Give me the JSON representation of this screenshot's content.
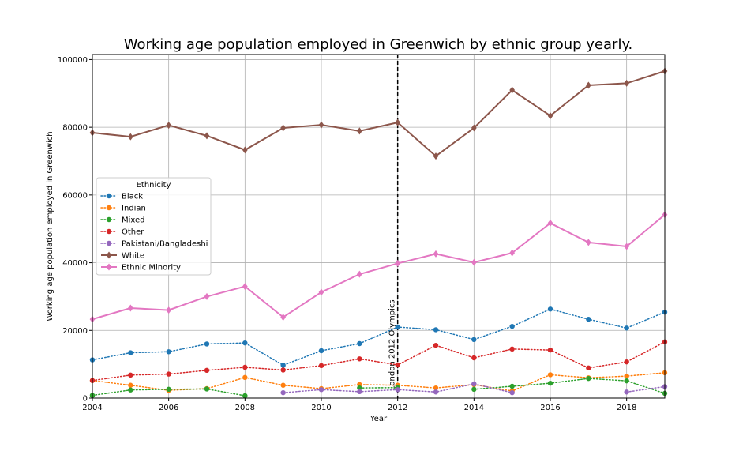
{
  "chart_data": {
    "type": "line",
    "title": "Working age population employed in Greenwich by ethnic group yearly.",
    "xlabel": "Year",
    "ylabel": "Working age population employed in Greenwich",
    "xlim": [
      2004,
      2019
    ],
    "ylim": [
      0,
      101500
    ],
    "xticks": [
      2004,
      2006,
      2008,
      2010,
      2012,
      2014,
      2016,
      2018
    ],
    "yticks": [
      0,
      20000,
      40000,
      60000,
      80000,
      100000
    ],
    "grid": true,
    "legend": {
      "title": "Ethnicity",
      "position": "center-left"
    },
    "annotation": {
      "x": 2012,
      "text": "London 2012 Olympics"
    },
    "x": [
      2004,
      2005,
      2006,
      2007,
      2008,
      2009,
      2010,
      2011,
      2012,
      2013,
      2014,
      2015,
      2016,
      2017,
      2018,
      2019
    ],
    "series": [
      {
        "name": "Black",
        "color": "#1f77b4",
        "style": "dotted",
        "marker": "circle",
        "values": [
          11300,
          13400,
          13700,
          16000,
          16300,
          9700,
          14000,
          16100,
          21000,
          20200,
          17300,
          21200,
          26300,
          23300,
          20700,
          25400
        ]
      },
      {
        "name": "Indian",
        "color": "#ff7f0e",
        "style": "dotted",
        "marker": "circle",
        "values": [
          5200,
          3800,
          2300,
          2800,
          6100,
          3800,
          2800,
          4000,
          3800,
          3000,
          4000,
          2100,
          6900,
          6000,
          6500,
          7500
        ]
      },
      {
        "name": "Mixed",
        "color": "#2ca02c",
        "style": "dotted",
        "marker": "circle",
        "values": [
          800,
          2400,
          2600,
          2700,
          700,
          null,
          null,
          3000,
          3100,
          null,
          2600,
          3500,
          4400,
          5800,
          5100,
          1400
        ]
      },
      {
        "name": "Other",
        "color": "#d62728",
        "style": "dotted",
        "marker": "circle",
        "values": [
          5200,
          6800,
          7100,
          8200,
          9100,
          8300,
          9600,
          11600,
          9800,
          15600,
          11900,
          14500,
          14200,
          8900,
          10700,
          16600
        ]
      },
      {
        "name": "Pakistani/Bangladeshi",
        "color": "#9467bd",
        "style": "dotted",
        "marker": "circle",
        "values": [
          null,
          null,
          null,
          null,
          null,
          1600,
          2500,
          1900,
          2500,
          1800,
          4200,
          1600,
          null,
          null,
          1800,
          3400
        ]
      },
      {
        "name": "White",
        "color": "#8c564b",
        "style": "solid",
        "marker": "diamond",
        "values": [
          78400,
          77200,
          80600,
          77500,
          73300,
          79800,
          80700,
          78900,
          81400,
          71500,
          79800,
          91000,
          83400,
          92400,
          93000,
          96600
        ]
      },
      {
        "name": "Ethnic Minority",
        "color": "#e377c2",
        "style": "solid",
        "marker": "diamond",
        "values": [
          23300,
          26600,
          26000,
          30000,
          33000,
          23900,
          31300,
          36600,
          39800,
          42600,
          40100,
          42900,
          51700,
          46000,
          44800,
          54200
        ]
      }
    ]
  }
}
